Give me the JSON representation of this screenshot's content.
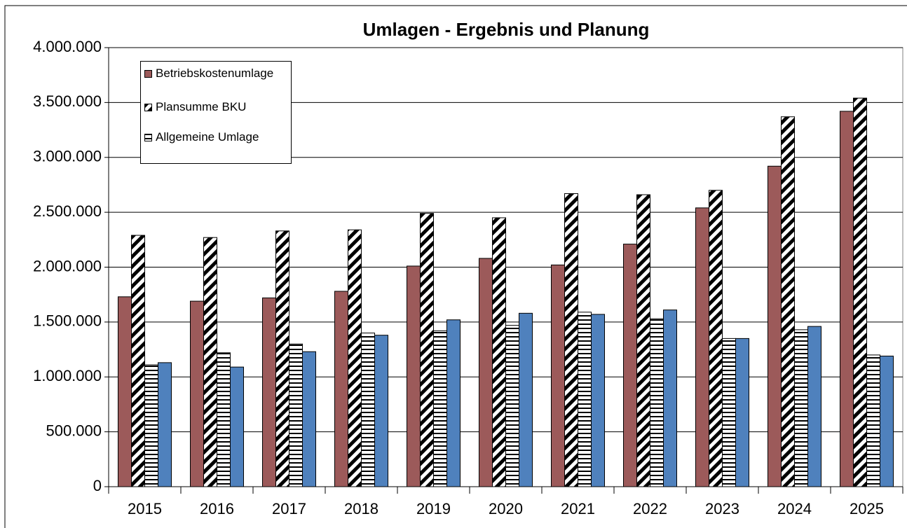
{
  "chart_data": {
    "type": "bar",
    "title": "Umlagen - Ergebnis und Planung",
    "categories": [
      "2015",
      "2016",
      "2017",
      "2018",
      "2019",
      "2020",
      "2021",
      "2022",
      "2023",
      "2024",
      "2025"
    ],
    "series": [
      {
        "name": "Betriebskostenumlage",
        "color": "#9c5a5a",
        "pattern": "solid",
        "values": [
          1730000,
          1690000,
          1720000,
          1780000,
          2010000,
          2080000,
          2020000,
          2210000,
          2540000,
          2920000,
          3420000
        ]
      },
      {
        "name": "Plansumme BKU",
        "color": "#000000",
        "pattern": "diagonal",
        "values": [
          2290000,
          2270000,
          2330000,
          2340000,
          2490000,
          2450000,
          2670000,
          2660000,
          2700000,
          3370000,
          3540000
        ]
      },
      {
        "name": "Allgemeine Umlage",
        "color": "#000000",
        "pattern": "horizontal",
        "values": [
          1110000,
          1220000,
          1300000,
          1400000,
          1420000,
          1470000,
          1590000,
          1530000,
          1350000,
          1430000,
          1200000
        ]
      },
      {
        "color": "#4f81bd",
        "pattern": "solid",
        "values": [
          1130000,
          1090000,
          1230000,
          1380000,
          1520000,
          1580000,
          1570000,
          1610000,
          1350000,
          1460000,
          1190000
        ]
      }
    ],
    "ylim": [
      0,
      4000000
    ],
    "yticks": [
      0,
      {
        "value": 500000,
        "label": "500.000"
      },
      {
        "value": 1000000,
        "label": "1.000.000"
      },
      {
        "value": 1500000,
        "label": "1.500.000"
      },
      {
        "value": 2000000,
        "label": "2.000.000"
      },
      {
        "value": 2500000,
        "label": "2.500.000"
      },
      {
        "value": 3000000,
        "label": "3.000.000"
      },
      {
        "value": 3500000,
        "label": "3.500.000"
      },
      {
        "value": 4000000,
        "label": "4.000.000"
      }
    ],
    "grid": true,
    "legend": "upper left"
  }
}
